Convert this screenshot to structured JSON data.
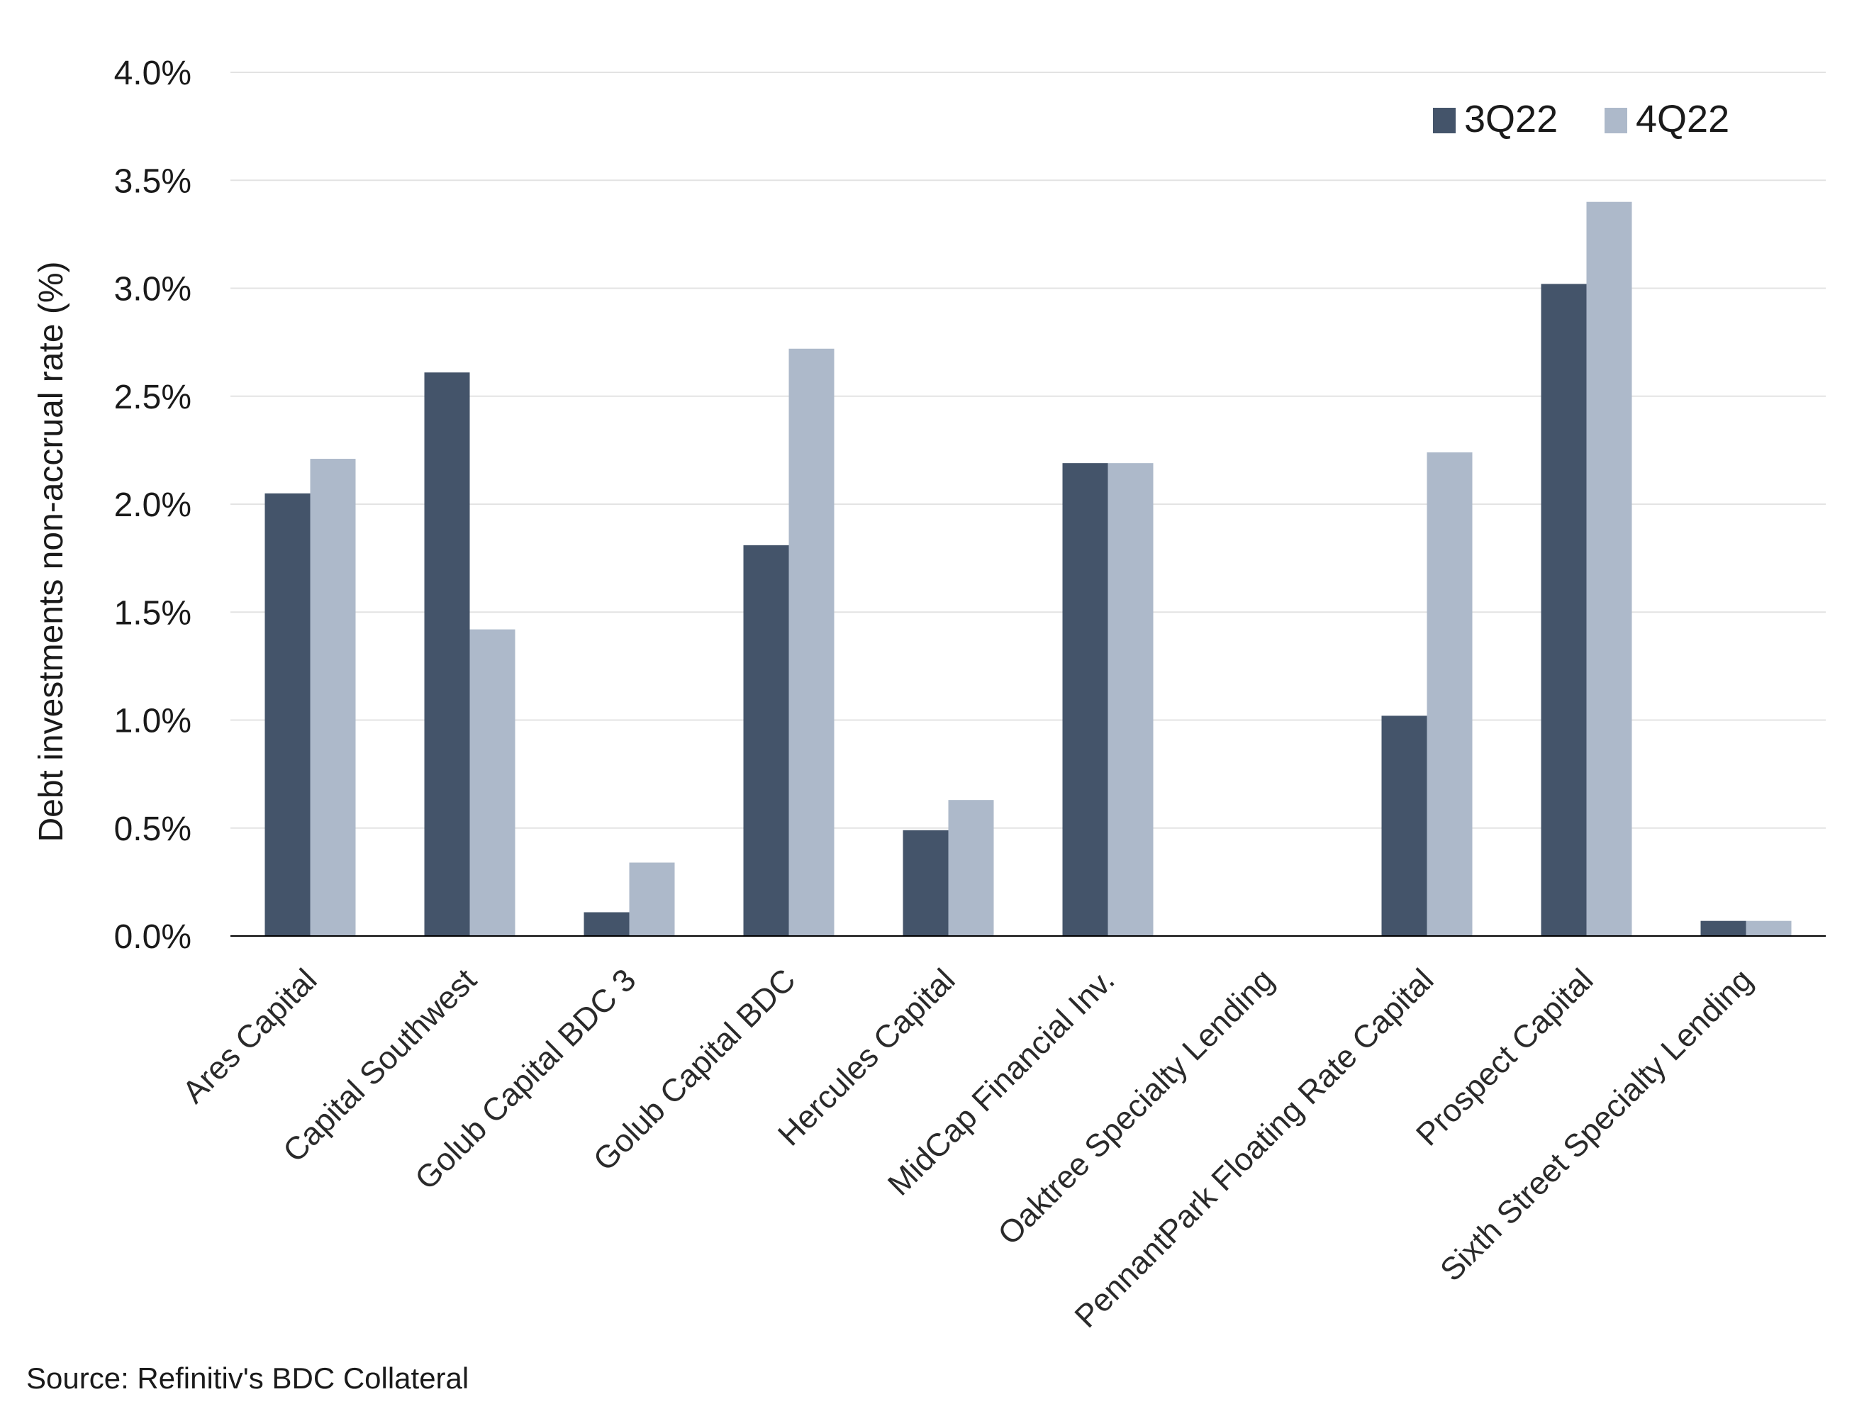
{
  "chart_data": {
    "type": "bar",
    "title": "",
    "xlabel": "",
    "ylabel": "Debt investments non-accrual rate (%)",
    "ylim": [
      0,
      4.0
    ],
    "yticks": [
      "0.0%",
      "0.5%",
      "1.0%",
      "1.5%",
      "2.0%",
      "2.5%",
      "3.0%",
      "3.5%",
      "4.0%"
    ],
    "grid": true,
    "legend_position": "top-right",
    "categories": [
      "Ares Capital",
      "Capital Southwest",
      "Golub Capital BDC 3",
      "Golub Capital BDC",
      "Hercules Capital",
      "MidCap Financial Inv.",
      "Oaktree Specialty Lending",
      "PennantPark Floating Rate Capital",
      "Prospect Capital",
      "Sixth Street Specialty Lending"
    ],
    "series": [
      {
        "name": "3Q22",
        "color": "#44546a",
        "values": [
          2.05,
          2.61,
          0.11,
          1.81,
          0.49,
          2.19,
          0.0,
          1.02,
          3.02,
          0.07
        ]
      },
      {
        "name": "4Q22",
        "color": "#adb9ca",
        "values": [
          2.21,
          1.42,
          0.34,
          2.72,
          0.63,
          2.19,
          0.0,
          2.24,
          3.4,
          0.07
        ]
      }
    ],
    "source": "Source: Refinitiv's BDC Collateral"
  }
}
